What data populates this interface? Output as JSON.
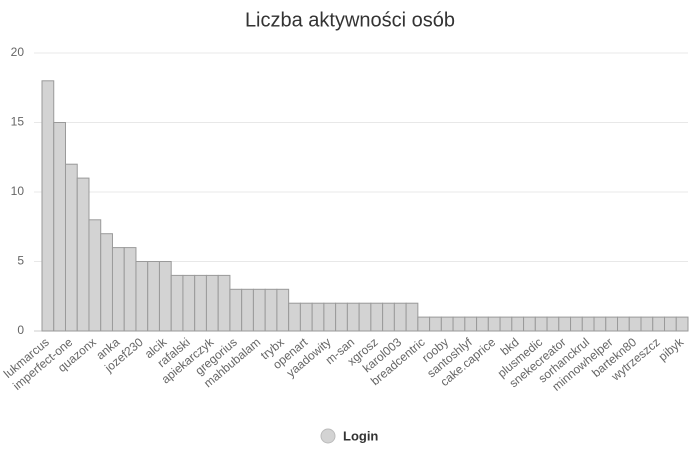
{
  "chart_data": {
    "type": "bar",
    "title": "Liczba aktywności osób",
    "categories": [
      "lukmarcus",
      null,
      "imperfect-one",
      null,
      "quazonx",
      null,
      "anka",
      null,
      "jozef230",
      null,
      "alcik",
      null,
      "rafalski",
      null,
      "apiekarczyk",
      null,
      "gregorius",
      null,
      "mahbubalam",
      null,
      "trybx",
      null,
      "openart",
      null,
      "yaadowity",
      null,
      "m-san",
      null,
      "xgrosz",
      null,
      "karol003",
      null,
      "breadcentric",
      null,
      "rooby",
      null,
      "santoshlyf",
      null,
      "cake.caprice",
      null,
      "bkd",
      null,
      "plusmedic",
      null,
      "snekecreator",
      null,
      "sorhanckrul",
      null,
      "minnowhelper",
      null,
      "bartekn80",
      null,
      "wytrzeszcz",
      null,
      "pibyk"
    ],
    "series": [
      {
        "name": "Login",
        "color": "#d3d3d3",
        "values": [
          18,
          15,
          12,
          11,
          8,
          7,
          6,
          6,
          5,
          5,
          5,
          4,
          4,
          4,
          4,
          4,
          3,
          3,
          3,
          3,
          3,
          2,
          2,
          2,
          2,
          2,
          2,
          2,
          2,
          2,
          2,
          2,
          1,
          1,
          1,
          1,
          1,
          1,
          1,
          1,
          1,
          1,
          1,
          1,
          1,
          1,
          1,
          1,
          1,
          1,
          1,
          1,
          1,
          1,
          1
        ]
      }
    ],
    "ylim": [
      0,
      20
    ],
    "yticks": [
      0,
      5,
      10,
      15,
      20
    ],
    "grid": true,
    "legend": "bottom"
  }
}
